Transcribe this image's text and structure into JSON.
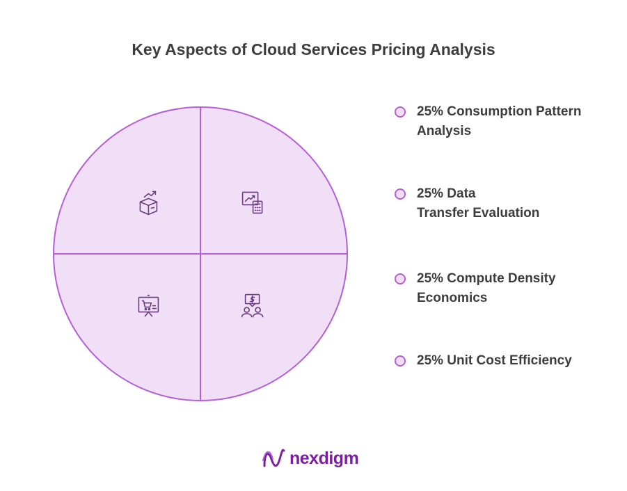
{
  "chart_data": {
    "type": "pie",
    "title": "Key Aspects of Cloud Services Pricing Analysis",
    "slices": [
      {
        "label": "Consumption Pattern\nAnalysis",
        "percent_label": "25%",
        "value": 25,
        "icon": "box-growth-icon"
      },
      {
        "label": "Data\nTransfer Evaluation",
        "percent_label": "25%",
        "value": 25,
        "icon": "chart-calculator-icon"
      },
      {
        "label": "Compute Density\nEconomics",
        "percent_label": "25%",
        "value": 25,
        "icon": "people-dollar-icon"
      },
      {
        "label": "Unit Cost Efficiency",
        "percent_label": "25%",
        "value": 25,
        "icon": "cart-presentation-icon"
      }
    ],
    "legend_position": "right"
  },
  "colors": {
    "slice_fill": "#f1dff7",
    "slice_stroke": "#b45ed9",
    "legend_dot_fill": "#f1dff7",
    "legend_dot_stroke": "#b45ed9",
    "title_text": "#3d3d3d",
    "brand_text": "#7a1fa2"
  },
  "brand": {
    "name": "nexdigm",
    "logo_icon": "nexdigm-wave-logo-icon"
  }
}
